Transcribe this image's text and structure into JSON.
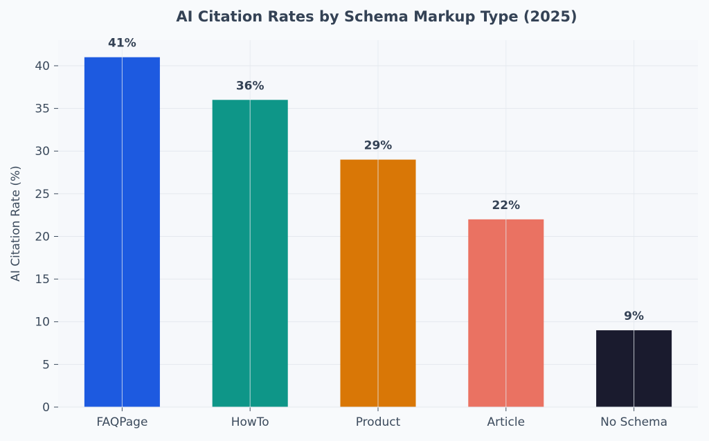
{
  "chart_data": {
    "type": "bar",
    "title": "AI Citation Rates by Schema Markup Type (2025)",
    "xlabel": "",
    "ylabel": "AI Citation Rate (%)",
    "categories": [
      "FAQPage",
      "HowTo",
      "Product",
      "Article",
      "No Schema"
    ],
    "values": [
      41,
      36,
      29,
      22,
      9
    ],
    "data_labels": [
      "41%",
      "36%",
      "29%",
      "22%",
      "9%"
    ],
    "ylim": [
      0,
      43
    ],
    "yticks": [
      0,
      5,
      10,
      15,
      20,
      25,
      30,
      35,
      40
    ],
    "grid": true,
    "legend": "none",
    "colors": [
      "#1d5ae0",
      "#0e9688",
      "#d97706",
      "#ea7262",
      "#1a1b2e"
    ],
    "theme": {
      "background": "#f8fafc",
      "plot_background": "#f6f8fb",
      "grid_color": "#e4e8ee",
      "text_color": "#344255",
      "tick_color": "#3b4a5c"
    }
  }
}
